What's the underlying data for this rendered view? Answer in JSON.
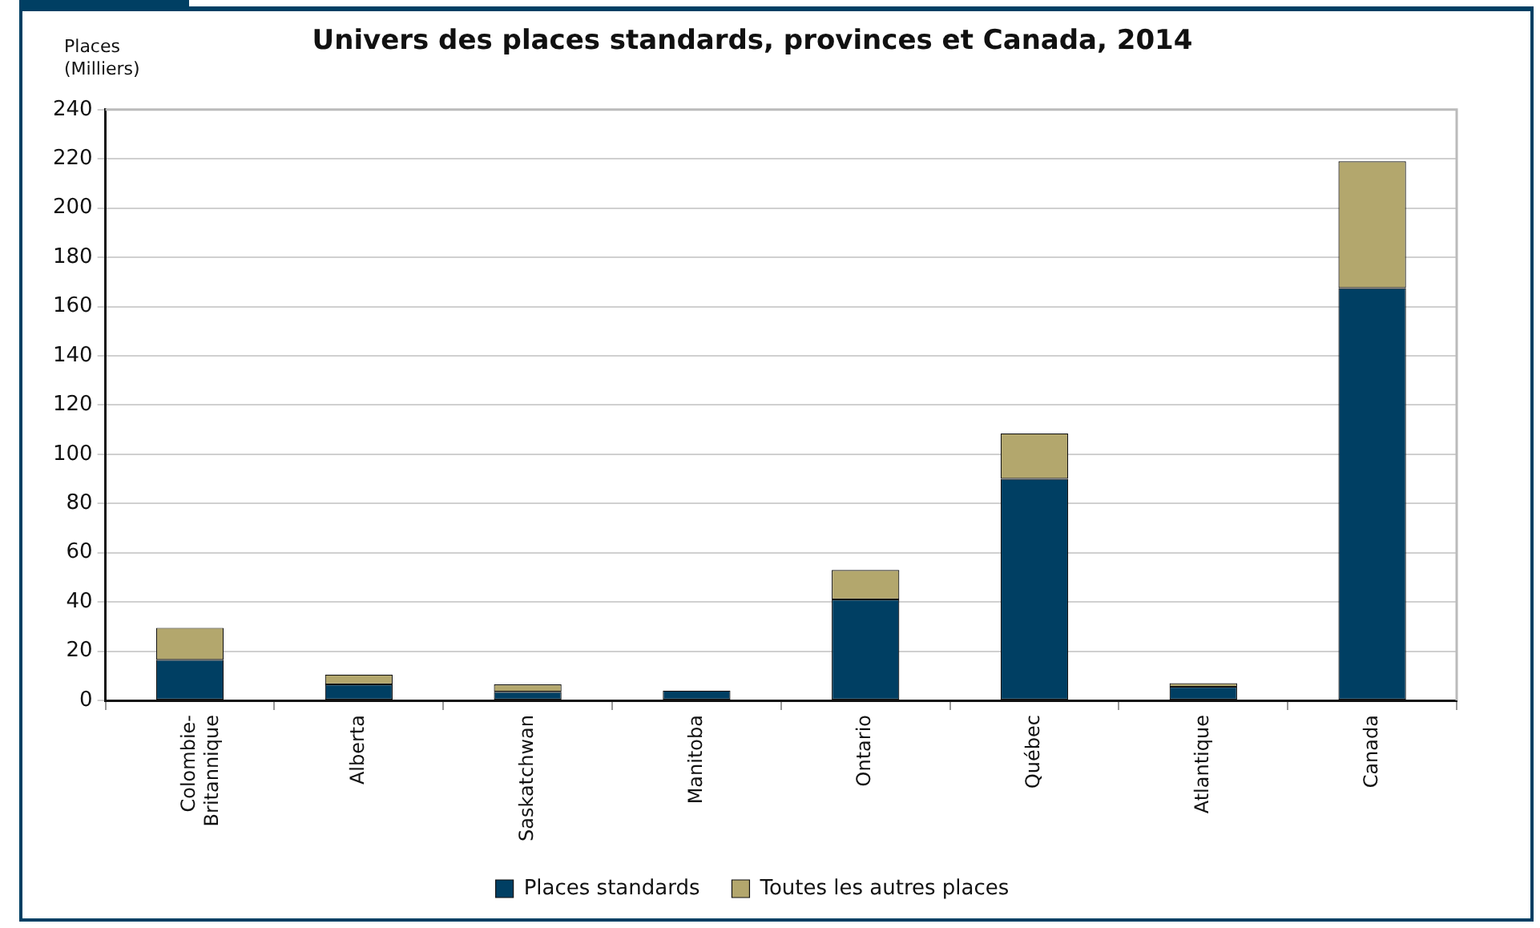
{
  "chart_data": {
    "type": "bar",
    "title": "Univers des places standards, provinces et Canada, 2014",
    "ylabel": "Places\n(Milliers)",
    "categories": [
      "Colombie-\nBritannique",
      "Alberta",
      "Saskatchwan",
      "Manitoba",
      "Ontario",
      "Québec",
      "Atlantique",
      "Canada"
    ],
    "stacked": true,
    "series": [
      {
        "name": "Places standards",
        "color": "#003f63",
        "values": [
          16.5,
          6.5,
          3.5,
          4,
          41,
          90,
          5.5,
          167.5
        ]
      },
      {
        "name": "Toutes les autres places",
        "color": "#b3a76d",
        "values": [
          13,
          4,
          3,
          0,
          12,
          18.5,
          1.5,
          51.5
        ]
      }
    ],
    "ylim": [
      0,
      240
    ],
    "yticks": [
      0,
      20,
      40,
      60,
      80,
      100,
      120,
      140,
      160,
      180,
      200,
      220,
      240
    ],
    "grid": "y",
    "legend": "bottom"
  }
}
